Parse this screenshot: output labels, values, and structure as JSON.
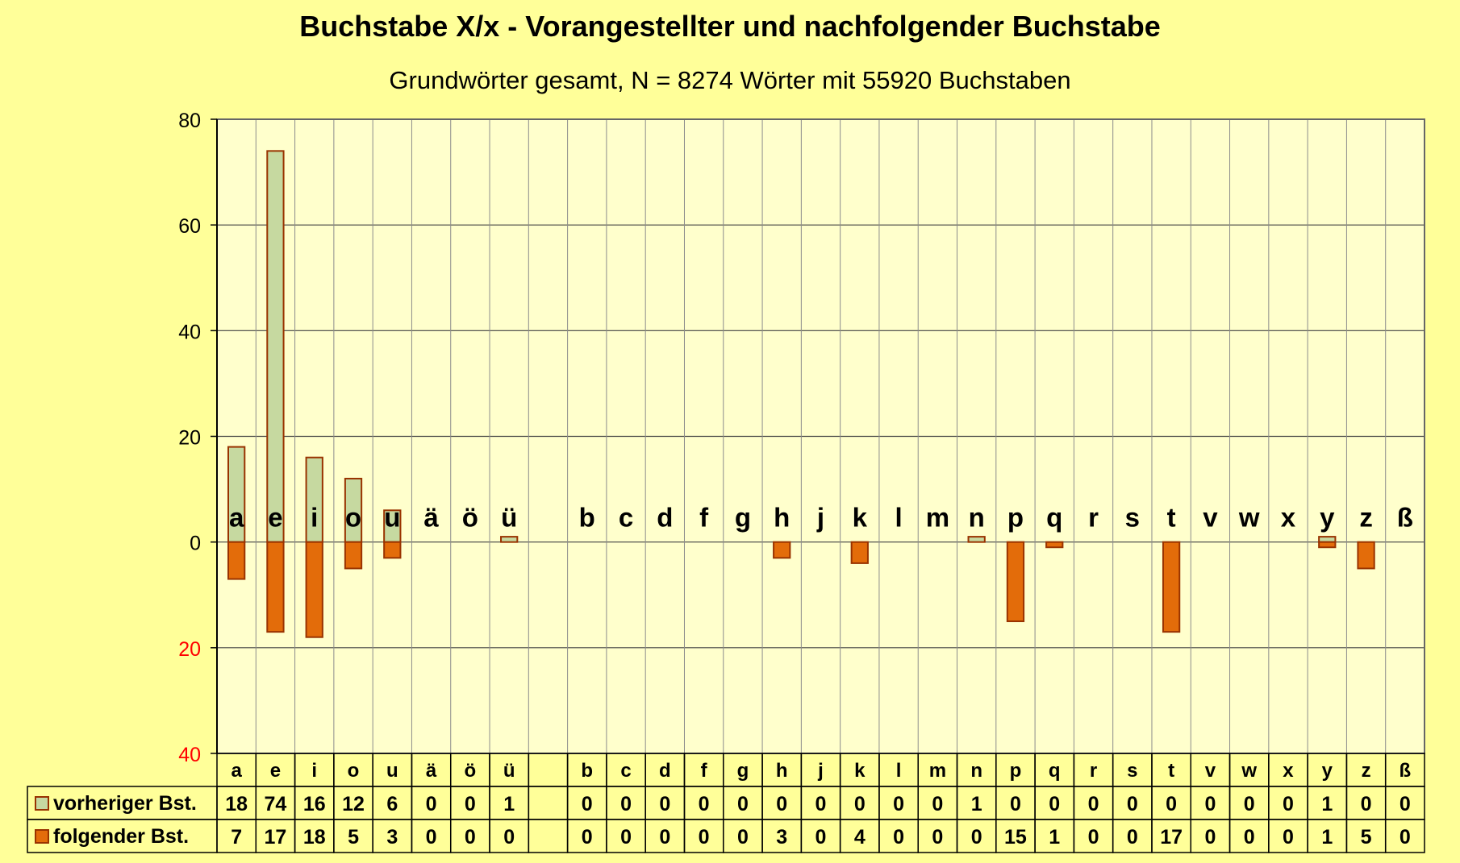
{
  "chart_data": {
    "type": "bar",
    "title": "Buchstabe X/x - Vorangestellter und nachfolgender Buchstabe",
    "subtitle": "Grundwörter gesamt,  N = 8274 Wörter mit 55920 Buchstaben",
    "categories": [
      "a",
      "e",
      "i",
      "o",
      "u",
      "ä",
      "ö",
      "ü",
      "",
      "b",
      "c",
      "d",
      "f",
      "g",
      "h",
      "j",
      "k",
      "l",
      "m",
      "n",
      "p",
      "q",
      "r",
      "s",
      "t",
      "v",
      "w",
      "x",
      "y",
      "z",
      "ß"
    ],
    "yticks": [
      {
        "label": "80",
        "value": 80,
        "color": "#000000"
      },
      {
        "label": "60",
        "value": 60,
        "color": "#000000"
      },
      {
        "label": "40",
        "value": 40,
        "color": "#000000"
      },
      {
        "label": "20",
        "value": 20,
        "color": "#000000"
      },
      {
        "label": "0",
        "value": 0,
        "color": "#000000"
      },
      {
        "label": "20",
        "value": -20,
        "color": "#ff0000"
      },
      {
        "label": "40",
        "value": -40,
        "color": "#ff0000"
      }
    ],
    "ylim": [
      -40,
      80
    ],
    "grid": true,
    "series": [
      {
        "name": "vorheriger Bst.",
        "color": "#c6d9a0",
        "border": "#993300",
        "values": [
          18,
          74,
          16,
          12,
          6,
          0,
          0,
          1,
          null,
          0,
          0,
          0,
          0,
          0,
          0,
          0,
          0,
          0,
          0,
          1,
          0,
          0,
          0,
          0,
          0,
          0,
          0,
          0,
          1,
          0,
          0
        ]
      },
      {
        "name": "folgender Bst.",
        "color": "#e36c0a",
        "border": "#993300",
        "values": [
          7,
          17,
          18,
          5,
          3,
          0,
          0,
          0,
          null,
          0,
          0,
          0,
          0,
          0,
          3,
          0,
          4,
          0,
          0,
          0,
          15,
          1,
          0,
          0,
          17,
          0,
          0,
          0,
          1,
          5,
          0
        ]
      }
    ]
  }
}
